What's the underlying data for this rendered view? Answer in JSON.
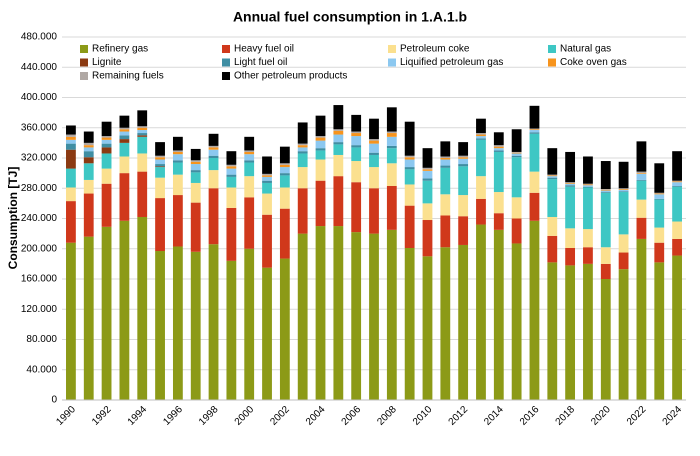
{
  "chart_data": {
    "type": "stacked_bar",
    "title": "Annual fuel consumption in 1.A.1.b",
    "y_label": "Consumption [TJ]",
    "categories": [
      "1990",
      null,
      "1992",
      null,
      "1994",
      null,
      "1996",
      null,
      "1998",
      null,
      "2000",
      null,
      "2002",
      null,
      "2004",
      null,
      "2006",
      null,
      "2008",
      null,
      "2010",
      null,
      "2012",
      null,
      "2014",
      null,
      "2016",
      null,
      "2018",
      null,
      "2020",
      null,
      "2022",
      null,
      "2024"
    ],
    "series": [
      {
        "name": "Refinery gas",
        "color": "#8c9a17",
        "values": [
          208000,
          216000,
          229000,
          237000,
          242000,
          197000,
          203000,
          196000,
          206000,
          184000,
          200000,
          175000,
          187000,
          220000,
          230000,
          230000,
          222000,
          220000,
          225000,
          201000,
          190000,
          202000,
          205000,
          232000,
          225000,
          207000,
          237000,
          182000,
          178000,
          180000,
          160000,
          173000,
          213000,
          182000,
          191000
        ]
      },
      {
        "name": "Heavy fuel oil",
        "color": "#d0381b",
        "values": [
          55000,
          57000,
          57000,
          63000,
          60000,
          70000,
          68000,
          65000,
          74000,
          70000,
          68000,
          70000,
          66000,
          60000,
          60000,
          66000,
          66000,
          60000,
          58000,
          56000,
          48000,
          42000,
          38000,
          34000,
          22000,
          33000,
          37000,
          35000,
          23000,
          22000,
          20000,
          22000,
          28000,
          26000,
          22000
        ]
      },
      {
        "name": "Petroleum coke",
        "color": "#fbe08f",
        "values": [
          18000,
          18000,
          20000,
          22000,
          24000,
          27000,
          27000,
          26000,
          24000,
          27000,
          28000,
          28000,
          28000,
          28000,
          28000,
          28000,
          28000,
          28000,
          30000,
          28000,
          22000,
          28000,
          28000,
          30000,
          28000,
          28000,
          28000,
          25000,
          26000,
          24000,
          22000,
          24000,
          24000,
          20000,
          23000
        ]
      },
      {
        "name": "Natural gas",
        "color": "#3ec7c4",
        "values": [
          25000,
          22000,
          20000,
          18000,
          22000,
          14000,
          16000,
          14000,
          16000,
          14000,
          18000,
          14000,
          16000,
          18000,
          12000,
          14000,
          18000,
          16000,
          20000,
          20000,
          30000,
          35000,
          38000,
          48000,
          53000,
          53000,
          50000,
          50000,
          55000,
          55000,
          72000,
          56000,
          25000,
          37000,
          46000
        ]
      },
      {
        "name": "Lignite",
        "color": "#8b3a12",
        "values": [
          25000,
          8000,
          8000,
          5000,
          2000,
          1000,
          0,
          0,
          0,
          0,
          0,
          0,
          0,
          0,
          0,
          0,
          0,
          0,
          0,
          0,
          0,
          0,
          0,
          0,
          0,
          0,
          0,
          0,
          0,
          0,
          0,
          0,
          0,
          0,
          0
        ]
      },
      {
        "name": "Light fuel oil",
        "color": "#3f8ea3",
        "values": [
          8000,
          8000,
          5000,
          5000,
          3000,
          3000,
          3000,
          3000,
          3000,
          3000,
          3000,
          3000,
          3000,
          3000,
          3000,
          3000,
          3000,
          3000,
          3000,
          3000,
          3000,
          3000,
          3000,
          2000,
          2000,
          2000,
          2000,
          2000,
          2000,
          1000,
          1000,
          1000,
          1000,
          1000,
          1000
        ]
      },
      {
        "name": "Liquified petroleum gas",
        "color": "#8cc8f0",
        "values": [
          5000,
          5000,
          5000,
          5000,
          4000,
          6000,
          8000,
          8000,
          8000,
          8000,
          8000,
          5000,
          8000,
          5000,
          10000,
          10000,
          12000,
          12000,
          12000,
          10000,
          10000,
          8000,
          7000,
          3000,
          3000,
          3000,
          3000,
          2000,
          2000,
          2000,
          2000,
          2000,
          8000,
          6000,
          5000
        ]
      },
      {
        "name": "Coke oven gas",
        "color": "#f7941d",
        "values": [
          4000,
          3000,
          3000,
          3000,
          3000,
          3000,
          3000,
          3000,
          3000,
          3000,
          3000,
          2000,
          3000,
          3000,
          4000,
          5000,
          4000,
          4000,
          5000,
          3000,
          2000,
          2000,
          2000,
          2000,
          2000,
          1000,
          1000,
          1000,
          1000,
          1000,
          1000,
          1000,
          1000,
          1000,
          1000
        ]
      },
      {
        "name": "Remaining fuels",
        "color": "#b0a8a4",
        "values": [
          3000,
          3000,
          2000,
          2000,
          2000,
          2000,
          2000,
          2000,
          2000,
          2000,
          2000,
          2000,
          2000,
          2000,
          2000,
          2000,
          2000,
          2000,
          2000,
          2000,
          2000,
          2000,
          2000,
          2000,
          2000,
          1000,
          1000,
          1000,
          1000,
          1000,
          1000,
          1000,
          2000,
          1000,
          1000
        ]
      },
      {
        "name": "Other petroleum products",
        "color": "#000000",
        "values": [
          12000,
          15000,
          19000,
          16000,
          21000,
          18000,
          18000,
          15000,
          16000,
          18000,
          18000,
          23000,
          22000,
          28000,
          27000,
          32000,
          22000,
          27000,
          32000,
          45000,
          26000,
          20000,
          18000,
          19000,
          17000,
          30000,
          30000,
          35000,
          40000,
          36000,
          37000,
          35000,
          40000,
          39000,
          39000
        ]
      }
    ],
    "ylim": [
      0,
      480000
    ],
    "yticks": [
      {
        "value": 0,
        "label": "0"
      },
      {
        "value": 40000,
        "label": "40.000"
      },
      {
        "value": 80000,
        "label": "80.000"
      },
      {
        "value": 120000,
        "label": "120.000"
      },
      {
        "value": 160000,
        "label": "160.000"
      },
      {
        "value": 200000,
        "label": "200.000"
      },
      {
        "value": 240000,
        "label": "240.000"
      },
      {
        "value": 280000,
        "label": "280.000"
      },
      {
        "value": 320000,
        "label": "320.000"
      },
      {
        "value": 360000,
        "label": "360.000"
      },
      {
        "value": 400000,
        "label": "400.000"
      },
      {
        "value": 440000,
        "label": "440.000"
      },
      {
        "value": 480000,
        "label": "480.000"
      }
    ],
    "grid": true
  }
}
